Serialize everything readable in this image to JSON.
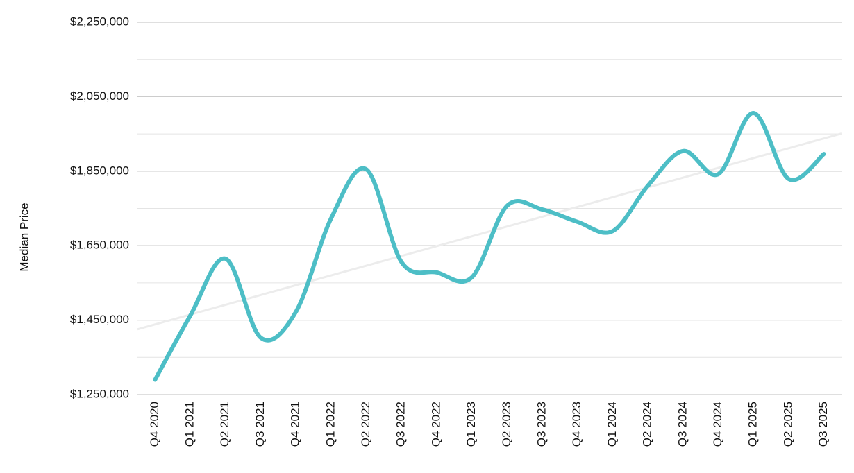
{
  "chart_data": {
    "type": "line",
    "y_label": "Median Price",
    "categories": [
      "Q4 2020",
      "Q1 2021",
      "Q2 2021",
      "Q3 2021",
      "Q4 2021",
      "Q1 2022",
      "Q2 2022",
      "Q3 2022",
      "Q4 2022",
      "Q1 2023",
      "Q2 2023",
      "Q3 2023",
      "Q4 2023",
      "Q1 2024",
      "Q2 2024",
      "Q3 2024",
      "Q4 2024",
      "Q1 2025",
      "Q2 2025",
      "Q3 2025"
    ],
    "series": [
      {
        "name": "Median Price",
        "color": "#4dbec6",
        "values": [
          1290000,
          1462000,
          1615000,
          1403000,
          1472000,
          1723000,
          1855000,
          1606000,
          1578000,
          1565000,
          1757000,
          1747000,
          1714000,
          1689000,
          1811000,
          1904000,
          1842000,
          2006000,
          1829000,
          1896000
        ]
      }
    ],
    "trendline": true,
    "trendline_color": "#ececec",
    "ylim": [
      1250000,
      2250000
    ],
    "yticks": [
      {
        "value": 1250000,
        "label": "$1,250,000"
      },
      {
        "value": 1450000,
        "label": "$1,450,000"
      },
      {
        "value": 1650000,
        "label": "$1,650,000"
      },
      {
        "value": 1850000,
        "label": "$1,850,000"
      },
      {
        "value": 2050000,
        "label": "$2,050,000"
      },
      {
        "value": 2250000,
        "label": "$2,250,000"
      }
    ],
    "minor_yticks": [
      1350000,
      1550000,
      1750000,
      1950000,
      2150000
    ],
    "grid": true,
    "smooth": true
  }
}
